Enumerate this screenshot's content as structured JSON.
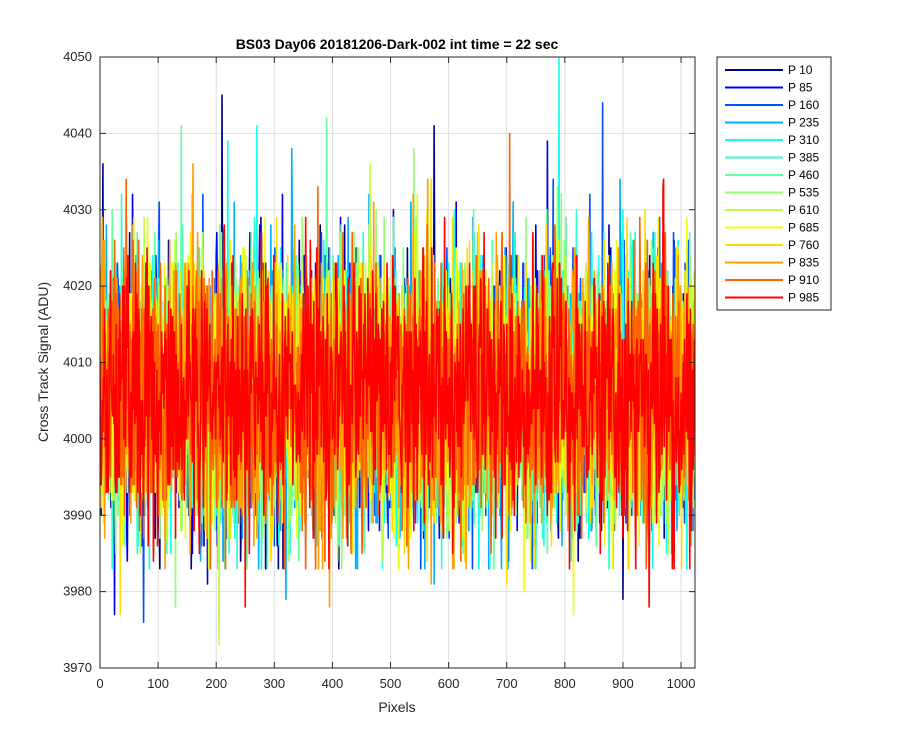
{
  "chart_data": {
    "type": "line",
    "title": "BS03 Day06 20181206-Dark-002 int time = 22 sec",
    "xlabel": "Pixels",
    "ylabel": "Cross Track Signal (ADU)",
    "xlim": [
      0,
      1024
    ],
    "ylim": [
      3970,
      4050
    ],
    "xticks": [
      0,
      100,
      200,
      300,
      400,
      500,
      600,
      700,
      800,
      900,
      1000
    ],
    "yticks": [
      3970,
      3980,
      3990,
      4000,
      4010,
      4020,
      4030,
      4040,
      4050
    ],
    "grid": true,
    "legend_position": "outside-top-right",
    "noise_model": {
      "points_per_series": 1024,
      "mean_adu": 4006,
      "typical_range_adu": [
        3985,
        4030
      ]
    },
    "series": [
      {
        "name": "P 10",
        "color": "#00008F",
        "extremes": [
          {
            "x": 5,
            "y": 4036
          },
          {
            "x": 210,
            "y": 4045
          },
          {
            "x": 900,
            "y": 3979
          },
          {
            "x": 575,
            "y": 4041
          }
        ]
      },
      {
        "name": "P 85",
        "color": "#0000EF",
        "extremes": [
          {
            "x": 25,
            "y": 3977
          },
          {
            "x": 185,
            "y": 3981
          },
          {
            "x": 770,
            "y": 4039
          }
        ]
      },
      {
        "name": "P 160",
        "color": "#0050FF",
        "extremes": [
          {
            "x": 75,
            "y": 3976
          },
          {
            "x": 865,
            "y": 4044
          },
          {
            "x": 300,
            "y": 3986
          }
        ]
      },
      {
        "name": "P 235",
        "color": "#00AFFF",
        "extremes": [
          {
            "x": 330,
            "y": 4038
          },
          {
            "x": 575,
            "y": 3981
          },
          {
            "x": 320,
            "y": 3979
          }
        ]
      },
      {
        "name": "P 310",
        "color": "#10FFEF",
        "extremes": [
          {
            "x": 790,
            "y": 4050
          },
          {
            "x": 220,
            "y": 4039
          },
          {
            "x": 270,
            "y": 4041
          }
        ]
      },
      {
        "name": "P 385",
        "color": "#30FFCF",
        "extremes": [
          {
            "x": 115,
            "y": 3985
          },
          {
            "x": 650,
            "y": 4027
          }
        ]
      },
      {
        "name": "P 460",
        "color": "#60FF9F",
        "extremes": [
          {
            "x": 390,
            "y": 4042
          },
          {
            "x": 140,
            "y": 4041
          }
        ]
      },
      {
        "name": "P 535",
        "color": "#90FF70",
        "extremes": [
          {
            "x": 130,
            "y": 3978
          },
          {
            "x": 540,
            "y": 4038
          }
        ]
      },
      {
        "name": "P 610",
        "color": "#C0FF40",
        "extremes": [
          {
            "x": 205,
            "y": 3973
          },
          {
            "x": 465,
            "y": 4036
          }
        ]
      },
      {
        "name": "P 685",
        "color": "#EFFF10",
        "extremes": [
          {
            "x": 815,
            "y": 3977
          },
          {
            "x": 730,
            "y": 3980
          }
        ]
      },
      {
        "name": "P 760",
        "color": "#FFDF00",
        "extremes": [
          {
            "x": 35,
            "y": 3977
          },
          {
            "x": 700,
            "y": 3981
          }
        ]
      },
      {
        "name": "P 835",
        "color": "#FF9F00",
        "extremes": [
          {
            "x": 395,
            "y": 3978
          },
          {
            "x": 160,
            "y": 4036
          },
          {
            "x": 570,
            "y": 3981
          }
        ]
      },
      {
        "name": "P 910",
        "color": "#FF6000",
        "extremes": [
          {
            "x": 705,
            "y": 4040
          },
          {
            "x": 45,
            "y": 4034
          }
        ]
      },
      {
        "name": "P 985",
        "color": "#FF0000",
        "extremes": [
          {
            "x": 945,
            "y": 3978
          },
          {
            "x": 250,
            "y": 3978
          },
          {
            "x": 970,
            "y": 4034
          }
        ]
      }
    ]
  }
}
